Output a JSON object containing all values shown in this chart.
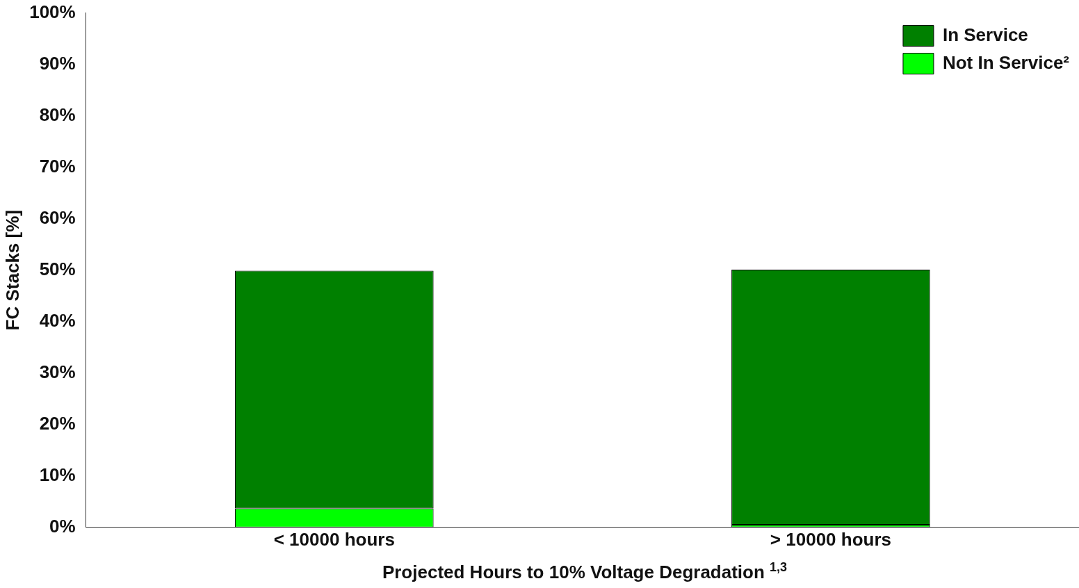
{
  "chart_data": {
    "type": "bar",
    "stacked": true,
    "xlabel": "Projected Hours to 10% Voltage Degradation $^{1,3}$",
    "ylabel": "FC Stacks [%]",
    "categories": [
      "< 10000 hours",
      "> 10000 hours"
    ],
    "series": [
      {
        "name": "Not In Service²",
        "color": "#00ff00",
        "values": [
          3.7,
          0.5
        ]
      },
      {
        "name": "In Service",
        "color": "#008000",
        "values": [
          46.2,
          49.6
        ]
      }
    ],
    "ylim": [
      0,
      100
    ],
    "yticks": [
      {
        "value": 0,
        "label": "0%"
      },
      {
        "value": 10,
        "label": "10%"
      },
      {
        "value": 20,
        "label": "20%"
      },
      {
        "value": 30,
        "label": "30%"
      },
      {
        "value": 40,
        "label": "40%"
      },
      {
        "value": 50,
        "label": "50%"
      },
      {
        "value": 60,
        "label": "60%"
      },
      {
        "value": 70,
        "label": "70%"
      },
      {
        "value": 80,
        "label": "80%"
      },
      {
        "value": 90,
        "label": "90%"
      },
      {
        "value": 100,
        "label": "100%"
      }
    ],
    "grid": false,
    "legend": "top right"
  }
}
